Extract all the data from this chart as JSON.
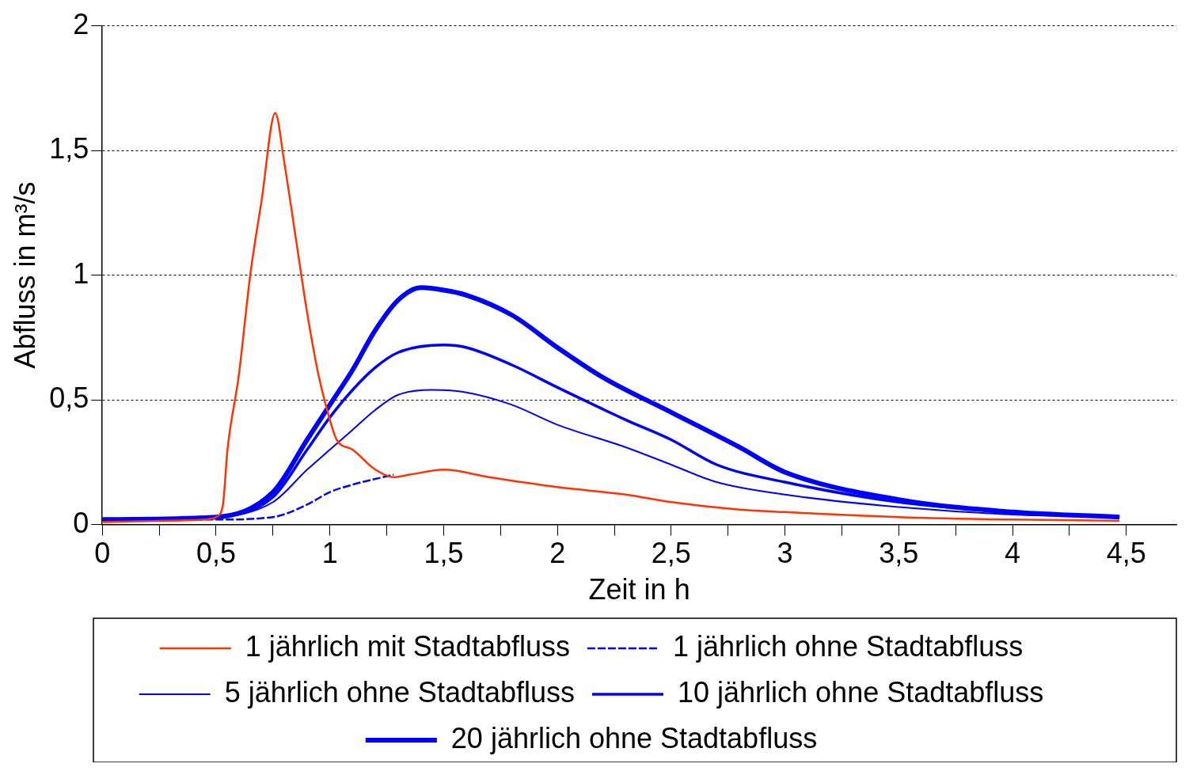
{
  "chart_data": {
    "type": "line",
    "xlabel": "Zeit in h",
    "ylabel": "Abfluss in m³/s",
    "xlim": [
      0,
      4.72
    ],
    "ylim": [
      0,
      2
    ],
    "xticks": [
      0,
      {
        "value": 0.25,
        "label": null
      },
      {
        "value": 0.5,
        "label": "0,5"
      },
      {
        "value": 0.75,
        "label": null
      },
      1,
      {
        "value": 1.25,
        "label": null
      },
      {
        "value": 1.5,
        "label": "1,5"
      },
      {
        "value": 1.75,
        "label": null
      },
      2,
      {
        "value": 2.25,
        "label": null
      },
      {
        "value": 2.5,
        "label": "2,5"
      },
      {
        "value": 2.75,
        "label": null
      },
      3,
      {
        "value": 3.25,
        "label": null
      },
      {
        "value": 3.5,
        "label": "3,5"
      },
      {
        "value": 3.75,
        "label": null
      },
      4,
      {
        "value": 4.25,
        "label": null
      },
      {
        "value": 4.5,
        "label": "4,5"
      }
    ],
    "yticks": [
      0,
      {
        "value": 0.5,
        "label": "0,5"
      },
      1,
      {
        "value": 1.5,
        "label": "1,5"
      },
      2
    ],
    "grid": "y",
    "legend": "bottom",
    "marker": "none",
    "series": [
      {
        "name": "1 jährlich mit Stadtabfluss",
        "color": "#ff3300",
        "line_style": "solid",
        "x": [
          0,
          0.25,
          0.45,
          0.5,
          0.53,
          0.55,
          0.6,
          0.65,
          0.7,
          0.76,
          0.8,
          0.85,
          0.9,
          0.95,
          1.0,
          1.03,
          1.1,
          1.2,
          1.28,
          1.35,
          1.5,
          1.7,
          2,
          2.3,
          2.5,
          2.8,
          3,
          3.5,
          4,
          4.47
        ],
        "values": [
          0.01,
          0.015,
          0.02,
          0.03,
          0.08,
          0.3,
          0.6,
          1.0,
          1.3,
          1.65,
          1.45,
          1.15,
          0.85,
          0.6,
          0.42,
          0.34,
          0.3,
          0.22,
          0.19,
          0.2,
          0.22,
          0.19,
          0.15,
          0.12,
          0.09,
          0.06,
          0.05,
          0.03,
          0.02,
          0.015
        ]
      },
      {
        "name": "1 jährlich ohne Stadtabfluss",
        "color": "#0000ff",
        "line_style": "dashed",
        "x": [
          0,
          0.5,
          0.75,
          0.9,
          1.0,
          1.1,
          1.28
        ],
        "values": [
          0.02,
          0.02,
          0.03,
          0.08,
          0.13,
          0.16,
          0.2
        ]
      },
      {
        "name": "5 jährlich ohne Stadtabfluss",
        "color": "#0000ff",
        "line_style": "solid",
        "x": [
          0,
          0.5,
          0.75,
          0.9,
          1.0,
          1.1,
          1.2,
          1.3,
          1.45,
          1.6,
          1.8,
          2.0,
          2.3,
          2.5,
          2.7,
          3,
          3.5,
          4,
          4.47
        ],
        "values": [
          0.02,
          0.03,
          0.09,
          0.22,
          0.3,
          0.38,
          0.46,
          0.52,
          0.54,
          0.53,
          0.48,
          0.4,
          0.31,
          0.24,
          0.17,
          0.12,
          0.07,
          0.04,
          0.03
        ]
      },
      {
        "name": "10 jährlich ohne Stadtabfluss",
        "color": "#0000ff",
        "line_style": "solid",
        "x": [
          0,
          0.5,
          0.75,
          0.9,
          1.0,
          1.1,
          1.2,
          1.3,
          1.5,
          1.6,
          1.8,
          2.0,
          2.3,
          2.5,
          2.7,
          3,
          3.5,
          4,
          4.47
        ],
        "values": [
          0.02,
          0.03,
          0.11,
          0.3,
          0.43,
          0.54,
          0.63,
          0.69,
          0.72,
          0.71,
          0.64,
          0.55,
          0.42,
          0.34,
          0.24,
          0.17,
          0.09,
          0.05,
          0.03
        ]
      },
      {
        "name": "20 jährlich ohne Stadtabfluss",
        "color": "#0000ff",
        "line_style": "solid",
        "x": [
          0,
          0.5,
          0.75,
          0.9,
          1.0,
          1.1,
          1.2,
          1.3,
          1.4,
          1.5,
          1.6,
          1.8,
          2.0,
          2.2,
          2.5,
          2.8,
          3,
          3.5,
          4,
          4.47
        ],
        "values": [
          0.02,
          0.03,
          0.13,
          0.34,
          0.48,
          0.62,
          0.78,
          0.9,
          0.95,
          0.94,
          0.92,
          0.84,
          0.71,
          0.59,
          0.45,
          0.31,
          0.21,
          0.1,
          0.05,
          0.03
        ]
      }
    ]
  }
}
